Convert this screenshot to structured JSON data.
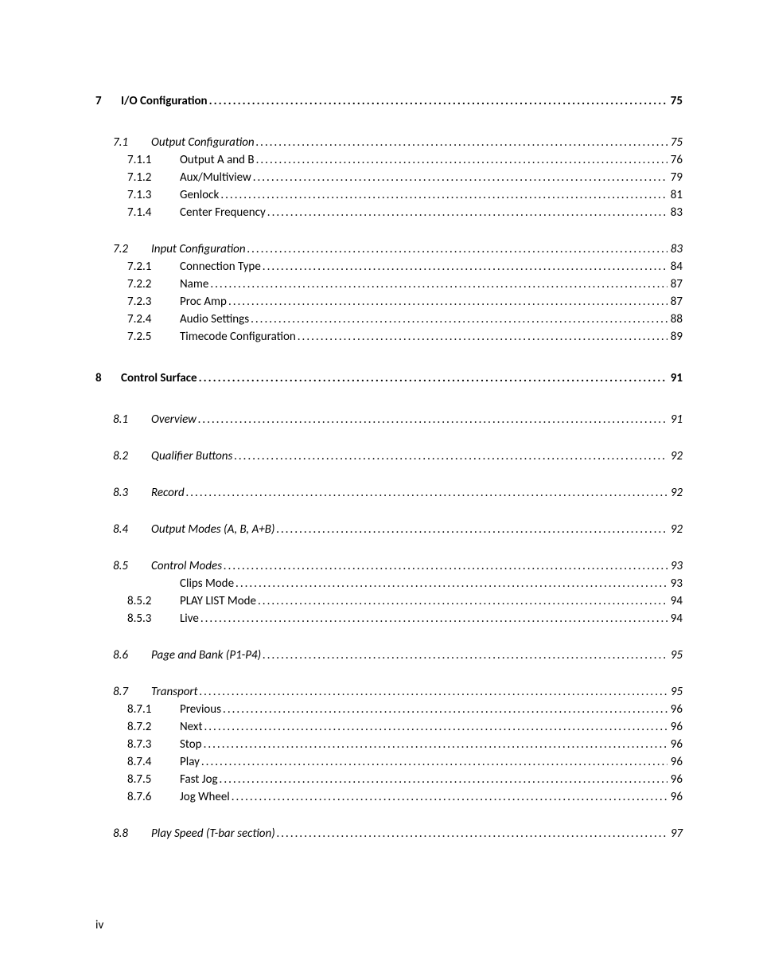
{
  "page_number_label": "iv",
  "entries": [
    {
      "level": 1,
      "num": "7",
      "title": "I/O Configuration",
      "page": "75"
    },
    {
      "level": 2,
      "num": "7.1",
      "title": "Output Configuration",
      "page": "75"
    },
    {
      "level": 3,
      "num": "7.1.1",
      "title": "Output A and B",
      "page": "76"
    },
    {
      "level": 3,
      "num": "7.1.2",
      "title": "Aux/Multiview",
      "page": "79"
    },
    {
      "level": 3,
      "num": "7.1.3",
      "title": "Genlock",
      "page": "81"
    },
    {
      "level": 3,
      "num": "7.1.4",
      "title": "Center Frequency",
      "page": "83"
    },
    {
      "level": 2,
      "num": "7.2",
      "title": "Input Configuration",
      "page": "83"
    },
    {
      "level": 3,
      "num": "7.2.1",
      "title": "Connection Type",
      "page": "84"
    },
    {
      "level": 3,
      "num": "7.2.2",
      "title": "Name",
      "page": "87"
    },
    {
      "level": 3,
      "num": "7.2.3",
      "title": "Proc Amp",
      "page": "87"
    },
    {
      "level": 3,
      "num": "7.2.4",
      "title": "Audio Settings",
      "page": "88"
    },
    {
      "level": 3,
      "num": "7.2.5",
      "title": "Timecode Configuration",
      "page": "89"
    },
    {
      "level": 1,
      "num": "8",
      "title": "Control Surface",
      "page": "91"
    },
    {
      "level": 2,
      "num": "8.1",
      "title": "Overview",
      "page": "91"
    },
    {
      "level": 2,
      "num": "8.2",
      "title": "Qualifier Buttons",
      "page": "92"
    },
    {
      "level": 2,
      "num": "8.3",
      "title": "Record",
      "page": "92"
    },
    {
      "level": 2,
      "num": "8.4",
      "title": "Output Modes (A, B, A+B)",
      "page": "92"
    },
    {
      "level": 2,
      "num": "8.5",
      "title": "Control Modes",
      "page": "93"
    },
    {
      "level": 4,
      "num": "",
      "title": "Clips Mode",
      "page": "93"
    },
    {
      "level": 3,
      "num": "8.5.2",
      "title": "PLAY LIST Mode",
      "page": "94"
    },
    {
      "level": 3,
      "num": "8.5.3",
      "title": "Live",
      "page": "94"
    },
    {
      "level": 2,
      "num": "8.6",
      "title": "Page and Bank (P1-P4)",
      "page": "95"
    },
    {
      "level": 2,
      "num": "8.7",
      "title": "Transport",
      "page": "95"
    },
    {
      "level": 3,
      "num": "8.7.1",
      "title": "Previous",
      "page": "96"
    },
    {
      "level": 3,
      "num": "8.7.2",
      "title": "Next",
      "page": "96"
    },
    {
      "level": 3,
      "num": "8.7.3",
      "title": "Stop",
      "page": "96"
    },
    {
      "level": 3,
      "num": "8.7.4",
      "title": "Play",
      "page": "96"
    },
    {
      "level": 3,
      "num": "8.7.5",
      "title": "Fast Jog",
      "page": "96"
    },
    {
      "level": 3,
      "num": "8.7.6",
      "title": "Jog Wheel",
      "page": "96"
    },
    {
      "level": 2,
      "num": "8.8",
      "title": "Play Speed (T-bar section)",
      "page": "97"
    }
  ]
}
